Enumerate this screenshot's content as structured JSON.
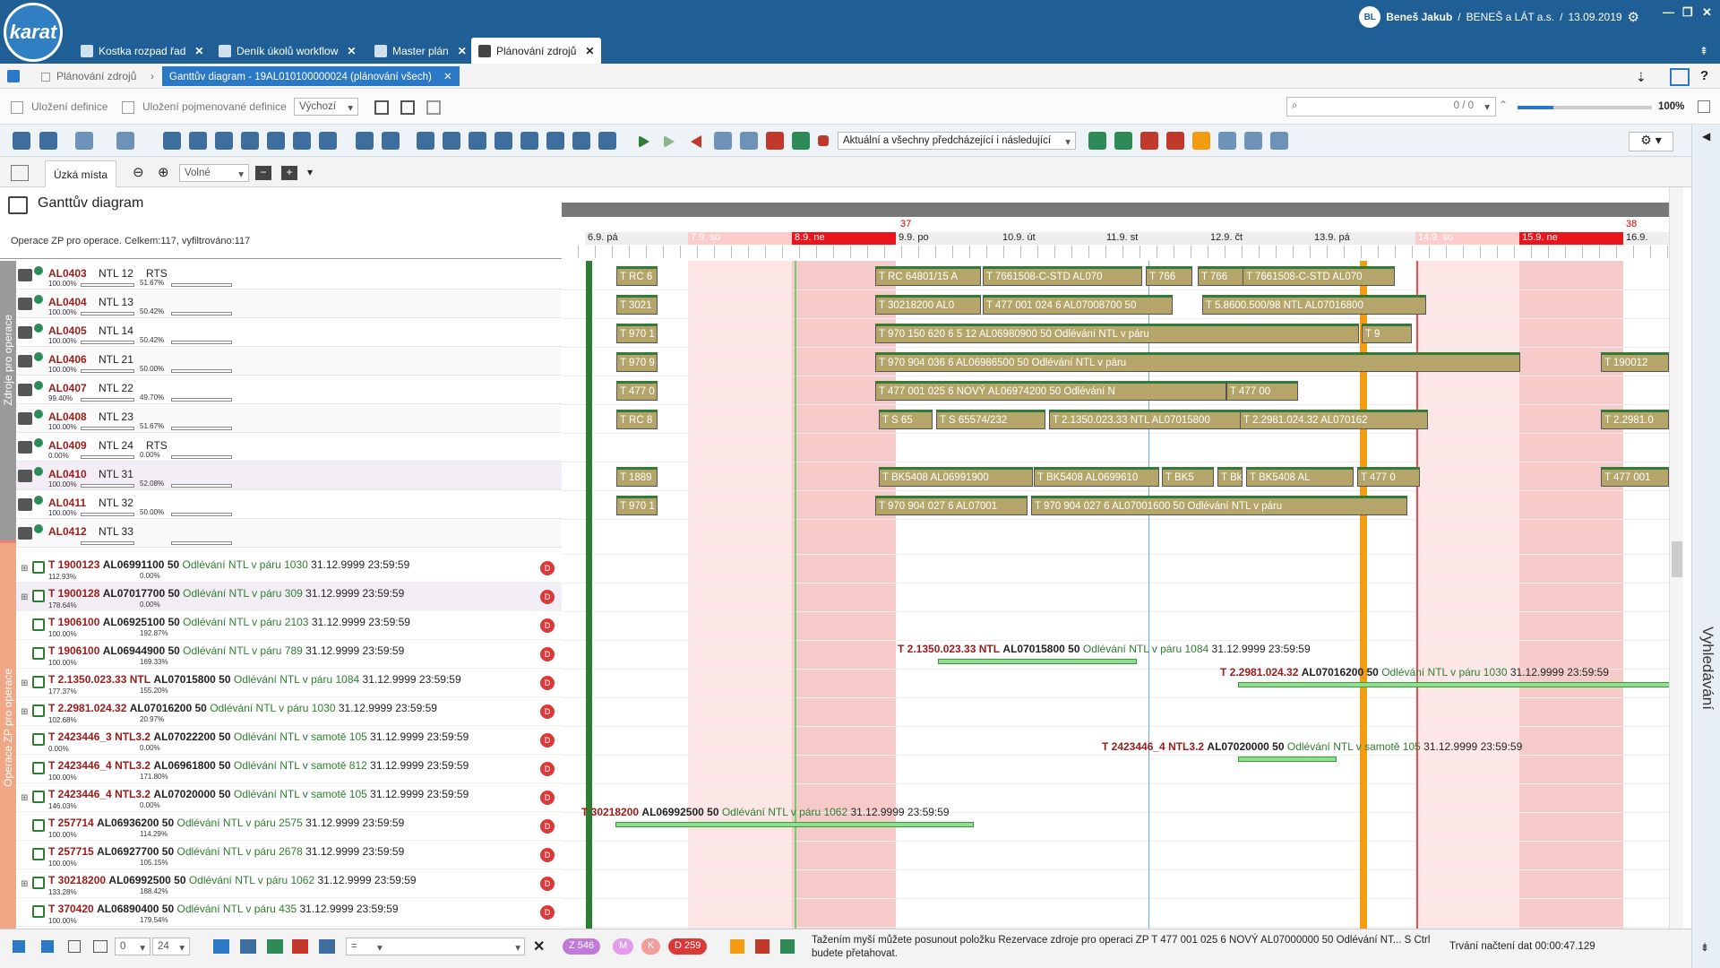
{
  "app": {
    "logo": "karat",
    "user": "Beneš Jakub",
    "company": "BENEŠ a LÁT a.s.",
    "date": "13.09.2019",
    "avatar": "BL"
  },
  "tabs": [
    {
      "label": "Kostka rozpad řad"
    },
    {
      "label": "Deník úkolů workflow"
    },
    {
      "label": "Master plán"
    },
    {
      "label": "Plánování zdrojů"
    }
  ],
  "breadcrumb": {
    "parent": "Plánování zdrojů",
    "current": "Ganttův diagram - 19AL010100000024 (plánování všech)"
  },
  "defbar": {
    "save": "Uložení definice",
    "save_named": "Uložení pojmenované definice",
    "default": "Výchozí",
    "search_count": "0 / 0",
    "zoom": "100%"
  },
  "toolbar": {
    "filter": "Aktuální a všechny předcházející i následující"
  },
  "subbar": {
    "tab": "Úzká místa",
    "zoom_mode": "Volné"
  },
  "gantt": {
    "title": "Ganttův diagram",
    "ops_info": "Operace ZP pro operace. Celkem:117, vyfiltrováno:117",
    "side_top": "Zdroje pro operace",
    "side_bottom": "Operace ZP pro operace",
    "right_panel": "Vyhledávání"
  },
  "timeline": {
    "weeks": [
      {
        "num": "37"
      },
      {
        "num": "38"
      }
    ],
    "days": [
      "6.9. pá",
      "7.9. so",
      "8.9. ne",
      "9.9. po",
      "10.9. út",
      "11.9. st",
      "12.9. čt",
      "13.9. pá",
      "14.9. so",
      "15.9. ne",
      "16.9."
    ]
  },
  "resources": [
    {
      "code": "AL0403",
      "name": "NTL 12",
      "tag": "RTS",
      "p1": "100.00%",
      "p2": "51.67%"
    },
    {
      "code": "AL0404",
      "name": "NTL 13",
      "tag": "",
      "p1": "100.00%",
      "p2": "50.42%"
    },
    {
      "code": "AL0405",
      "name": "NTL 14",
      "tag": "",
      "p1": "100.00%",
      "p2": "50.42%"
    },
    {
      "code": "AL0406",
      "name": "NTL 21",
      "tag": "",
      "p1": "100.00%",
      "p2": "50.00%"
    },
    {
      "code": "AL0407",
      "name": "NTL 22",
      "tag": "",
      "p1": "99.40%",
      "p2": "49.70%"
    },
    {
      "code": "AL0408",
      "name": "NTL 23",
      "tag": "",
      "p1": "100.00%",
      "p2": "51.67%"
    },
    {
      "code": "AL0409",
      "name": "NTL 24",
      "tag": "RTS",
      "p1": "0.00%",
      "p2": "0.00%"
    },
    {
      "code": "AL0410",
      "name": "NTL 31",
      "tag": "",
      "p1": "100.00%",
      "p2": "52.08%"
    },
    {
      "code": "AL0411",
      "name": "NTL 32",
      "tag": "",
      "p1": "100.00%",
      "p2": "50.00%"
    },
    {
      "code": "AL0412",
      "name": "NTL 33",
      "tag": "",
      "p1": "",
      "p2": ""
    }
  ],
  "bars": [
    {
      "row": 0,
      "text": "T RC 6"
    },
    {
      "row": 0,
      "text": "T RC 64801/15 A"
    },
    {
      "row": 0,
      "text": "T 7661508-C-STD AL070"
    },
    {
      "row": 0,
      "text": "T 766"
    },
    {
      "row": 0,
      "text": "T 766"
    },
    {
      "row": 0,
      "text": "T 7661508-C-STD AL070"
    },
    {
      "row": 1,
      "text": "T 3021"
    },
    {
      "row": 1,
      "text": "T 30218200 AL0"
    },
    {
      "row": 1,
      "text": "T 477 001 024 6 AL07008700 50"
    },
    {
      "row": 1,
      "text": "T 5.8600.500/98 NTL AL07016800"
    },
    {
      "row": 2,
      "text": "T 970 1"
    },
    {
      "row": 2,
      "text": "T 970 150 620 6 5 12 AL06980900 50 Odlévání NTL v páru"
    },
    {
      "row": 2,
      "text": "T 9"
    },
    {
      "row": 3,
      "text": "T 970 9"
    },
    {
      "row": 3,
      "text": "T 970 904 036 6 AL06986500 50 Odlévání NTL v páru"
    },
    {
      "row": 3,
      "text": "T 190012"
    },
    {
      "row": 4,
      "text": "T 477 0"
    },
    {
      "row": 4,
      "text": "T 477 001 025 6 NOVÝ AL06974200 50 Odlévání N"
    },
    {
      "row": 4,
      "text": "T 477 00"
    },
    {
      "row": 5,
      "text": "T RC 8"
    },
    {
      "row": 5,
      "text": "T S 65"
    },
    {
      "row": 5,
      "text": "T S 65574/232"
    },
    {
      "row": 5,
      "text": "T 2.1350.023.33 NTL AL07015800"
    },
    {
      "row": 5,
      "text": "T 2.2981.024.32 AL070162"
    },
    {
      "row": 5,
      "text": "T 2.2981.0"
    },
    {
      "row": 7,
      "text": "T 1889"
    },
    {
      "row": 7,
      "text": "T BK5408 AL06991900"
    },
    {
      "row": 7,
      "text": "T BK5408 AL0699610"
    },
    {
      "row": 7,
      "text": "T BK5"
    },
    {
      "row": 7,
      "text": "T Bk"
    },
    {
      "row": 7,
      "text": "T BK5408 AL"
    },
    {
      "row": 7,
      "text": "T 477 0"
    },
    {
      "row": 7,
      "text": "T 477 001"
    },
    {
      "row": 8,
      "text": "T 970 1"
    },
    {
      "row": 8,
      "text": "T 970 904 027 6 AL07001"
    },
    {
      "row": 8,
      "text": "T 970 904 027 6 AL07001600 50 Odlévání NTL v páru"
    }
  ],
  "operations": [
    {
      "code": "T 1900123",
      "al": "AL06991100",
      "q": "50",
      "desc": "Odlévání NTL v páru 1030",
      "date": "31.12.9999 23:59:59",
      "p1": "112.93%",
      "p2": "0.00%",
      "plus": true
    },
    {
      "code": "T 1900128",
      "al": "AL07017700",
      "q": "50",
      "desc": "Odlévání NTL v páru 309",
      "date": "31.12.9999 23:59:59",
      "p1": "178.64%",
      "p2": "0.00%",
      "plus": true
    },
    {
      "code": "T 1906100",
      "al": "AL06925100",
      "q": "50",
      "desc": "Odlévání NTL v páru 2103",
      "date": "31.12.9999 23:59:59",
      "p1": "100.00%",
      "p2": "192.87%",
      "plus": false
    },
    {
      "code": "T 1906100",
      "al": "AL06944900",
      "q": "50",
      "desc": "Odlévání NTL v páru 789",
      "date": "31.12.9999 23:59:59",
      "p1": "100.00%",
      "p2": "169.33%",
      "plus": false
    },
    {
      "code": "T 2.1350.023.33  NTL",
      "al": "AL07015800",
      "q": "50",
      "desc": "Odlévání NTL v páru 1084",
      "date": "31.12.9999 23:59:59",
      "p1": "177.37%",
      "p2": "155.20%",
      "plus": true
    },
    {
      "code": "T 2.2981.024.32",
      "al": "AL07016200",
      "q": "50",
      "desc": "Odlévání NTL v páru 1030",
      "date": "31.12.9999 23:59:59",
      "p1": "102.68%",
      "p2": "20.97%",
      "plus": true
    },
    {
      "code": "T 2423446_3 NTL3.2",
      "al": "AL07022200",
      "q": "50",
      "desc": "Odlévání NTL v samotě 105",
      "date": "31.12.9999 23:59:59",
      "p1": "0.00%",
      "p2": "0.00%",
      "plus": false
    },
    {
      "code": "T 2423446_4 NTL3.2",
      "al": "AL06961800",
      "q": "50",
      "desc": "Odlévání NTL v samotě 812",
      "date": "31.12.9999 23:59:59",
      "p1": "100.00%",
      "p2": "171.80%",
      "plus": false
    },
    {
      "code": "T 2423446_4 NTL3.2",
      "al": "AL07020000",
      "q": "50",
      "desc": "Odlévání NTL v samotě 105",
      "date": "31.12.9999 23:59:59",
      "p1": "146.03%",
      "p2": "0.00%",
      "plus": true
    },
    {
      "code": "T 257714",
      "al": "AL06936200",
      "q": "50",
      "desc": "Odlévání NTL v páru 2575",
      "date": "31.12.9999 23:59:59",
      "p1": "100.00%",
      "p2": "114.29%",
      "plus": false
    },
    {
      "code": "T 257715",
      "al": "AL06927700",
      "q": "50",
      "desc": "Odlévání NTL v páru 2678",
      "date": "31.12.9999 23:59:59",
      "p1": "100.00%",
      "p2": "105.15%",
      "plus": false
    },
    {
      "code": "T 30218200",
      "al": "AL06992500",
      "q": "50",
      "desc": "Odlévání NTL v páru 1062",
      "date": "31.12.9999 23:59:59",
      "p1": "133.28%",
      "p2": "188.42%",
      "plus": true
    },
    {
      "code": "T 370420",
      "al": "AL06890400",
      "q": "50",
      "desc": "Odlévání NTL v páru 435",
      "date": "31.12.9999 23:59:59",
      "p1": "100.00%",
      "p2": "179.54%",
      "plus": false
    }
  ],
  "gantt_ops": [
    {
      "code": "T 2.1350.023.33",
      "ntl": "NTL",
      "al": "AL07015800",
      "q": "50",
      "desc": "Odlévání NTL v páru 1084",
      "date": "31.12.9999 23:59:59"
    },
    {
      "code": "T 2.2981.024.32",
      "al": "AL07016200",
      "q": "50",
      "desc": "Odlévání NTL v páru 1030",
      "date": "31.12.9999 23:59:59"
    },
    {
      "code": "T 2423446_4 NTL3.2",
      "al": "AL07020000",
      "q": "50",
      "desc": "Odlévání NTL v samotě 105",
      "date": "31.12.9999 23:59:59"
    },
    {
      "code": "T 30218200",
      "al": "AL06992500",
      "q": "50",
      "desc": "Odlévání NTL v páru 1062",
      "date": "31.12.9999 23:59:59"
    }
  ],
  "bottom": {
    "field1": "0",
    "field2": "24",
    "eq": "=",
    "z": "Z 546",
    "m": "M",
    "k": "K",
    "d": "D 259",
    "status": "Tažením myší můžete posunout položku Rezervace zdroje pro operaci ZP T 477 001 025 6 NOVÝ AL07000000   50   Odlévání NT... S Ctrl budete přetahovat.",
    "load": "Trvání načtení dat 00:00:47.129"
  },
  "colors": {
    "brand": "#1f5f95",
    "accent": "#2b78c6",
    "bar": "#b5a56a",
    "holiday": "#e8151c",
    "now": "#f39c12"
  }
}
